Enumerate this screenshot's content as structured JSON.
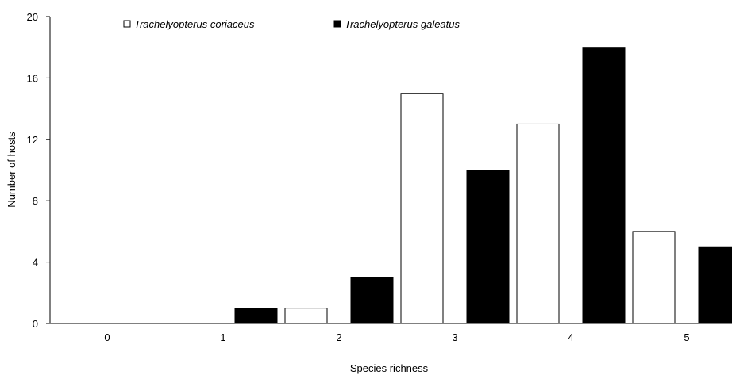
{
  "chart_data": {
    "type": "bar",
    "categories": [
      "0",
      "1",
      "2",
      "3",
      "4",
      "5"
    ],
    "series": [
      {
        "name": "Trachelyopterus coriaceus",
        "values": [
          0,
          0,
          1,
          15,
          13,
          6
        ],
        "color": "#ffffff"
      },
      {
        "name": "Trachelyopterus galeatus",
        "values": [
          0,
          1,
          3,
          10,
          18,
          5
        ],
        "color": "#000000"
      }
    ],
    "xlabel": "Species richness",
    "ylabel": "Number of hosts",
    "ylim": [
      0,
      20
    ],
    "yticks": [
      "0",
      "4",
      "8",
      "12",
      "16",
      "20"
    ],
    "grid": false,
    "legend_position": "top"
  }
}
